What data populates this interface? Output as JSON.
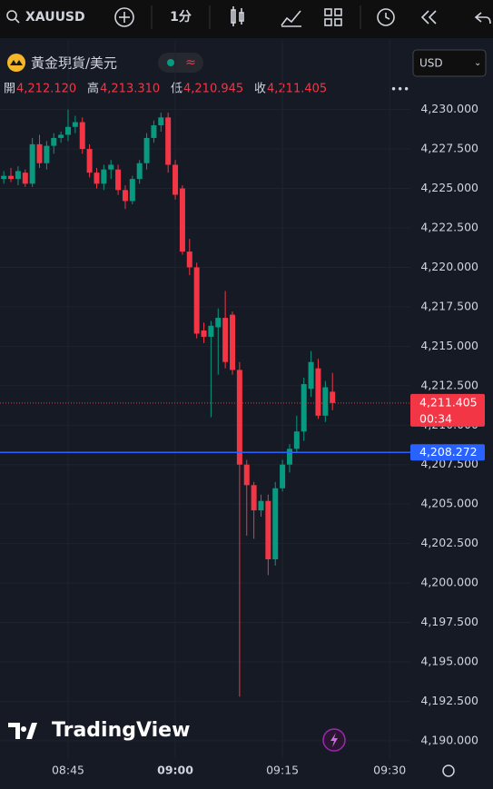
{
  "toolbar": {
    "symbol": "XAUUSD",
    "interval": "1分"
  },
  "header": {
    "name": "黃金現貨/美元",
    "currency": "USD",
    "ohlc": [
      {
        "label": "開",
        "value": "4,212.120"
      },
      {
        "label": "高",
        "value": "4,213.310"
      },
      {
        "label": "低",
        "value": "4,210.945"
      },
      {
        "label": "收",
        "value": "4,211.405"
      }
    ]
  },
  "branding": "TradingView",
  "chart_data": {
    "type": "candlestick",
    "x": [
      "08:36",
      "08:37",
      "08:38",
      "08:39",
      "08:40",
      "08:41",
      "08:42",
      "08:43",
      "08:44",
      "08:45",
      "08:46",
      "08:47",
      "08:48",
      "08:49",
      "08:50",
      "08:51",
      "08:52",
      "08:53",
      "08:54",
      "08:55",
      "08:56",
      "08:57",
      "08:58",
      "08:59",
      "09:00",
      "09:01",
      "09:02",
      "09:03",
      "09:04",
      "09:05",
      "09:06",
      "09:07",
      "09:08",
      "09:09",
      "09:10",
      "09:11",
      "09:12",
      "09:13",
      "09:14",
      "09:15",
      "09:16",
      "09:17",
      "09:18",
      "09:19",
      "09:20",
      "09:21",
      "09:22"
    ],
    "open": [
      4225.6,
      4225.8,
      4225.6,
      4226.0,
      4225.3,
      4227.8,
      4226.6,
      4227.7,
      4228.2,
      4228.4,
      4228.9,
      4229.2,
      4227.5,
      4226.0,
      4225.3,
      4226.2,
      4226.2,
      4224.9,
      4224.2,
      4225.6,
      4226.6,
      4228.2,
      4229.0,
      4229.5,
      4226.5,
      4225.0,
      4221.0,
      4220.0,
      4216.0,
      4215.6,
      4216.2,
      4216.8,
      4217.0,
      4213.5,
      4207.5,
      4206.2,
      4204.6,
      4205.2,
      4201.5,
      4206.0,
      4207.5,
      4208.5,
      4209.6,
      4212.3,
      4213.6,
      4210.6,
      4212.12
    ],
    "high": [
      4226.1,
      4226.3,
      4226.4,
      4226.2,
      4228.2,
      4228.4,
      4228.0,
      4228.5,
      4228.6,
      4230.0,
      4229.6,
      4229.5,
      4227.8,
      4226.3,
      4226.5,
      4226.8,
      4226.5,
      4225.2,
      4225.8,
      4226.8,
      4228.5,
      4229.3,
      4229.8,
      4229.8,
      4226.8,
      4225.2,
      4221.8,
      4220.3,
      4216.5,
      4216.6,
      4217.4,
      4218.5,
      4217.2,
      4214.0,
      4207.8,
      4206.4,
      4205.6,
      4205.6,
      4206.4,
      4207.8,
      4208.8,
      4210.6,
      4213.0,
      4214.7,
      4214.2,
      4212.8,
      4213.31
    ],
    "low": [
      4225.3,
      4225.4,
      4225.2,
      4225.1,
      4225.1,
      4226.3,
      4226.2,
      4227.2,
      4227.9,
      4228.0,
      4228.5,
      4227.2,
      4225.7,
      4225.0,
      4224.9,
      4225.6,
      4224.6,
      4223.7,
      4224.0,
      4225.3,
      4226.2,
      4227.9,
      4228.6,
      4226.0,
      4224.3,
      4220.8,
      4219.5,
      4215.5,
      4215.2,
      4210.5,
      4213.2,
      4213.6,
      4213.2,
      4192.8,
      4203.0,
      4202.8,
      4204.2,
      4200.5,
      4201.1,
      4205.8,
      4207.0,
      4208.3,
      4209.0,
      4211.8,
      4210.4,
      4210.2,
      4210.945
    ],
    "close": [
      4225.8,
      4225.6,
      4226.1,
      4225.3,
      4227.8,
      4226.6,
      4227.7,
      4228.2,
      4228.4,
      4228.9,
      4229.2,
      4227.5,
      4226.0,
      4225.3,
      4226.2,
      4226.5,
      4224.9,
      4224.2,
      4225.6,
      4226.6,
      4228.2,
      4229.0,
      4229.5,
      4226.5,
      4224.6,
      4221.0,
      4220.0,
      4215.8,
      4215.6,
      4216.3,
      4216.8,
      4214.0,
      4213.5,
      4207.5,
      4206.2,
      4204.6,
      4205.2,
      4201.5,
      4206.0,
      4207.5,
      4208.5,
      4209.6,
      4212.6,
      4214.0,
      4210.6,
      4212.4,
      4211.405
    ],
    "up_color": "#089981",
    "down_color": "#f23645",
    "ylim": [
      4188.9,
      4230.9
    ],
    "yticks": [
      {
        "value": 4190,
        "label": "4,190.000"
      },
      {
        "value": 4192.5,
        "label": "4,192.500"
      },
      {
        "value": 4195,
        "label": "4,195.000"
      },
      {
        "value": 4197.5,
        "label": "4,197.500"
      },
      {
        "value": 4200,
        "label": "4,200.000"
      },
      {
        "value": 4202.5,
        "label": "4,202.500"
      },
      {
        "value": 4205,
        "label": "4,205.000"
      },
      {
        "value": 4207.5,
        "label": "4,207.500"
      },
      {
        "value": 4210,
        "label": "4,210.000"
      },
      {
        "value": 4212.5,
        "label": "4,212.500"
      },
      {
        "value": 4215,
        "label": "4,215.000"
      },
      {
        "value": 4217.5,
        "label": "4,217.500"
      },
      {
        "value": 4220,
        "label": "4,220.000"
      },
      {
        "value": 4222.5,
        "label": "4,222.500"
      },
      {
        "value": 4225,
        "label": "4,225.000"
      },
      {
        "value": 4227.5,
        "label": "4,227.500"
      },
      {
        "value": 4230,
        "label": "4,230.000"
      }
    ],
    "xticks": [
      "08:45",
      "09:00",
      "09:15",
      "09:30"
    ],
    "grid": true,
    "price_lines": [
      {
        "value": 4211.405,
        "label": "4,211.405",
        "countdown": "00:34",
        "color": "#f23645",
        "style": "dotted"
      },
      {
        "value": 4208.272,
        "label": "4,208.272",
        "color": "#2962ff",
        "style": "solid"
      }
    ]
  }
}
